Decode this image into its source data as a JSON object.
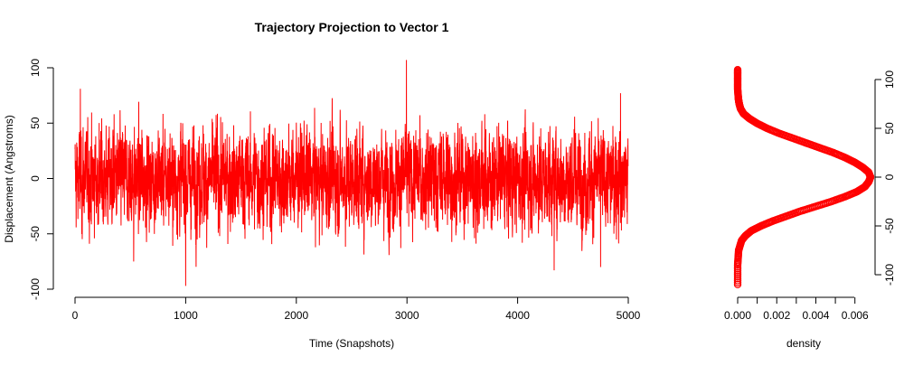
{
  "chart_data": [
    {
      "type": "line",
      "title": "Trajectory Projection to Vector 1",
      "xlabel": "Time (Snapshots)",
      "ylabel": "Displacement (Angstroms)",
      "xlim": [
        0,
        5000
      ],
      "ylim": [
        -100,
        100
      ],
      "xticks": [
        "0",
        "1000",
        "2000",
        "3000",
        "4000",
        "5000"
      ],
      "yticks": [
        "-100",
        "-50",
        "0",
        "50",
        "100"
      ],
      "series_color": "#ff0000",
      "noisy_series": {
        "n_points": 5000,
        "mean": 0,
        "approx_sd": 25,
        "min": -97,
        "max": 107,
        "extremes": [
          {
            "x": 48,
            "y": 81
          },
          {
            "x": 530,
            "y": -75
          },
          {
            "x": 1000,
            "y": -97
          },
          {
            "x": 2995,
            "y": 107
          },
          {
            "x": 4330,
            "y": -83
          },
          {
            "x": 4750,
            "y": -80
          },
          {
            "x": 4930,
            "y": 77
          }
        ]
      },
      "grid": false,
      "legend": "none"
    },
    {
      "type": "line",
      "title": "",
      "xlabel": "density",
      "ylabel": "",
      "xlim": [
        0,
        0.0068
      ],
      "ylim": [
        -100,
        100
      ],
      "xticks": [
        "0.000",
        "0.002",
        "0.004",
        "0.006"
      ],
      "yticks": [
        "-100",
        "-50",
        "0",
        "50",
        "100"
      ],
      "y_axis_side": "right",
      "marker": "circle",
      "series_color": "#ff0000",
      "density_curve": {
        "y": [
          -110,
          -90,
          -75,
          -65,
          -60,
          -55,
          -50,
          -45,
          -40,
          -35,
          -30,
          -25,
          -20,
          -15,
          -10,
          -5,
          0,
          5,
          10,
          15,
          20,
          25,
          30,
          35,
          40,
          45,
          50,
          55,
          60,
          65,
          70,
          75,
          80,
          90,
          100,
          110
        ],
        "x": [
          0.0,
          0.0,
          5e-05,
          0.0002,
          0.0004,
          0.0007,
          0.0012,
          0.0018,
          0.0025,
          0.0032,
          0.004,
          0.0048,
          0.0055,
          0.0061,
          0.0065,
          0.0067,
          0.0068,
          0.0067,
          0.0064,
          0.006,
          0.0055,
          0.0049,
          0.0042,
          0.0035,
          0.0028,
          0.0021,
          0.0015,
          0.001,
          0.0006,
          0.0003,
          0.00015,
          8e-05,
          4e-05,
          0.0,
          0.0,
          0.0
        ]
      },
      "grid": false,
      "legend": "none"
    }
  ]
}
